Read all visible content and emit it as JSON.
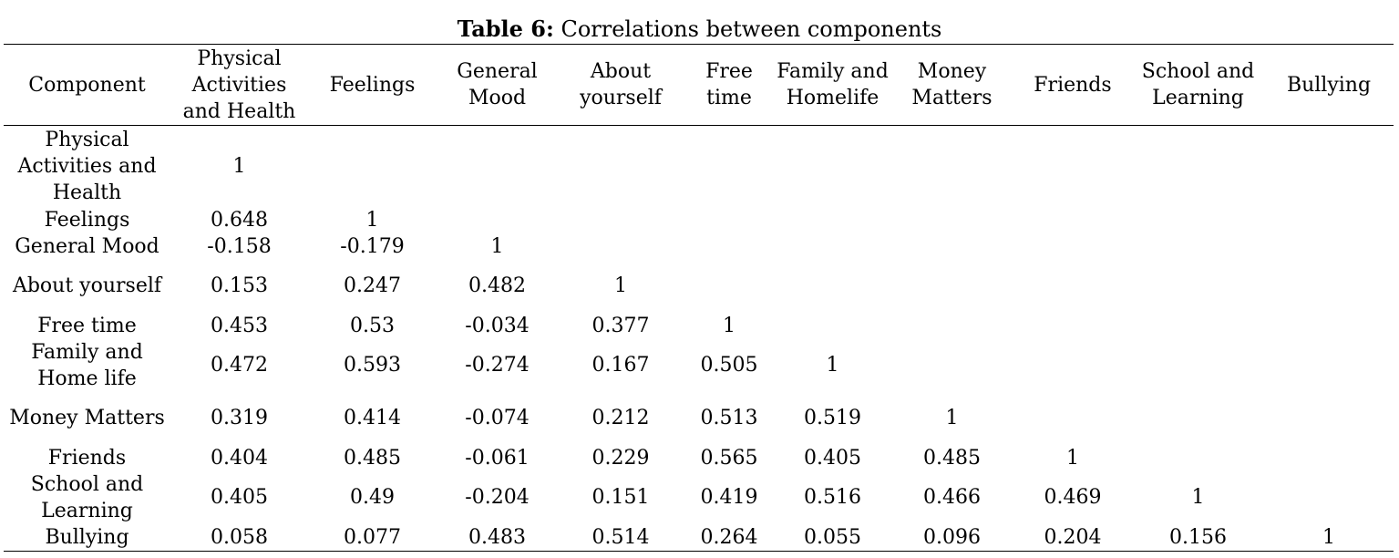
{
  "caption": {
    "label": "Table 6:",
    "text": " Correlations between components"
  },
  "table": {
    "headers": [
      "Component",
      "Physical Activities and Health",
      "Feelings",
      "General Mood",
      "About yourself",
      "Free time",
      "Family and Homelife",
      "Money Matters",
      "Friends",
      "School and Learning",
      "Bullying"
    ],
    "rows": [
      {
        "label": "Physical Activities and Health",
        "values": [
          "1",
          "",
          "",
          "",
          "",
          "",
          "",
          "",
          "",
          ""
        ]
      },
      {
        "label": "Feelings",
        "values": [
          "0.648",
          "1",
          "",
          "",
          "",
          "",
          "",
          "",
          "",
          ""
        ]
      },
      {
        "label": "General Mood",
        "values": [
          "-0.158",
          "-0.179",
          "1",
          "",
          "",
          "",
          "",
          "",
          "",
          ""
        ]
      },
      {
        "label": "About yourself",
        "values": [
          "0.153",
          "0.247",
          "0.482",
          "1",
          "",
          "",
          "",
          "",
          "",
          ""
        ]
      },
      {
        "label": "Free time",
        "values": [
          "0.453",
          "0.53",
          "-0.034",
          "0.377",
          "1",
          "",
          "",
          "",
          "",
          ""
        ]
      },
      {
        "label": "Family and Home life",
        "values": [
          "0.472",
          "0.593",
          "-0.274",
          "0.167",
          "0.505",
          "1",
          "",
          "",
          "",
          ""
        ]
      },
      {
        "label": "Money Matters",
        "values": [
          "0.319",
          "0.414",
          "-0.074",
          "0.212",
          "0.513",
          "0.519",
          "1",
          "",
          "",
          ""
        ]
      },
      {
        "label": "Friends",
        "values": [
          "0.404",
          "0.485",
          "-0.061",
          "0.229",
          "0.565",
          "0.405",
          "0.485",
          "1",
          "",
          ""
        ]
      },
      {
        "label": "School and Learning",
        "values": [
          "0.405",
          "0.49",
          "-0.204",
          "0.151",
          "0.419",
          "0.516",
          "0.466",
          "0.469",
          "1",
          ""
        ]
      },
      {
        "label": "Bullying",
        "values": [
          "0.058",
          "0.077",
          "0.483",
          "0.514",
          "0.264",
          "0.055",
          "0.096",
          "0.204",
          "0.156",
          "1"
        ]
      }
    ]
  }
}
